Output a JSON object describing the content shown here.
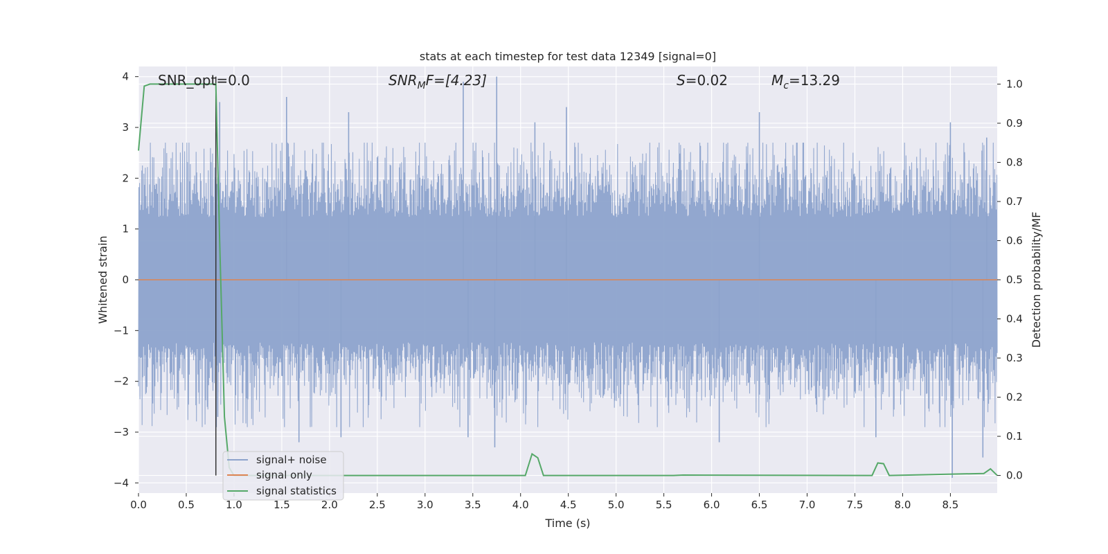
{
  "chart_data": {
    "type": "line",
    "title": "stats at each timestep for test data 12349 [signal=0]",
    "xlabel": "Time (s)",
    "ylabel": "Whitened strain",
    "y2label": "Detection probability/MF",
    "xlim": [
      0.0,
      8.99
    ],
    "ylim": [
      -4.2,
      4.2
    ],
    "y2lim": [
      -0.045,
      1.045
    ],
    "xticks": [
      0.0,
      0.5,
      1.0,
      1.5,
      2.0,
      2.5,
      3.0,
      3.5,
      4.0,
      4.5,
      5.0,
      5.5,
      6.0,
      6.5,
      7.0,
      7.5,
      8.0,
      8.5
    ],
    "xtick_labels": [
      "0.0",
      "0.5",
      "1.0",
      "1.5",
      "2.0",
      "2.5",
      "3.0",
      "3.5",
      "4.0",
      "4.5",
      "5.0",
      "5.5",
      "6.0",
      "6.5",
      "7.0",
      "7.5",
      "8.0",
      "8.5"
    ],
    "yticks": [
      4,
      3,
      2,
      1,
      0,
      -1,
      -2,
      -3,
      -4
    ],
    "ytick_labels": [
      "4",
      "3",
      "2",
      "1",
      "0",
      "−1",
      "−2",
      "−3",
      "−4"
    ],
    "y2ticks": [
      1.0,
      0.9,
      0.8,
      0.7,
      0.6,
      0.5,
      0.4,
      0.3,
      0.2,
      0.1,
      0.0
    ],
    "y2tick_labels": [
      "1.0",
      "0.9",
      "0.8",
      "0.7",
      "0.6",
      "0.5",
      "0.4",
      "0.3",
      "0.2",
      "0.1",
      "0.0"
    ],
    "grid": true,
    "legend_placement": "lower-left",
    "annotations": {
      "snr_opt": "SNR_opt=0.0",
      "snr_mf_main": "SNR",
      "snr_mf_sub": "M",
      "snr_mf_rest": "F=[4.23]",
      "s_main": "S",
      "s_rest": "=0.02",
      "mc_main": "M",
      "mc_sub": "c",
      "mc_rest": "=13.29"
    },
    "marker_line_x": 0.81,
    "series": [
      {
        "name": "signal+ noise",
        "color": "#8da3cc",
        "axis": "left",
        "style": "dense-noise",
        "rms_level": 1.3,
        "spikes": [
          {
            "x": 0.81,
            "y": 2.9
          },
          {
            "x": 0.85,
            "y": 3.5
          },
          {
            "x": 0.83,
            "y": -2.7
          },
          {
            "x": 1.55,
            "y": 3.6
          },
          {
            "x": 2.2,
            "y": 3.3
          },
          {
            "x": 3.4,
            "y": 3.9
          },
          {
            "x": 3.75,
            "y": 4.0
          },
          {
            "x": 4.15,
            "y": 3.1
          },
          {
            "x": 4.48,
            "y": 3.4
          },
          {
            "x": 6.5,
            "y": 3.3
          },
          {
            "x": 8.5,
            "y": 3.1
          },
          {
            "x": 8.88,
            "y": 2.8
          },
          {
            "x": 1.68,
            "y": -3.2
          },
          {
            "x": 2.12,
            "y": -3.1
          },
          {
            "x": 3.45,
            "y": -3.1
          },
          {
            "x": 3.73,
            "y": -3.3
          },
          {
            "x": 6.08,
            "y": -3.2
          },
          {
            "x": 7.72,
            "y": -3.1
          },
          {
            "x": 8.52,
            "y": -3.9
          },
          {
            "x": 8.84,
            "y": -3.5
          }
        ]
      },
      {
        "name": "signal only",
        "color": "#dd8452",
        "axis": "left",
        "x": [
          0.0,
          8.99
        ],
        "y": [
          0.0,
          0.0
        ]
      },
      {
        "name": "signal statistics",
        "color": "#55a868",
        "axis": "right",
        "x": [
          0.0,
          0.06,
          0.12,
          0.2,
          0.5,
          0.78,
          0.81,
          0.85,
          0.9,
          0.95,
          1.0,
          4.05,
          4.12,
          4.18,
          4.24,
          5.6,
          5.7,
          7.68,
          7.74,
          7.8,
          7.86,
          8.85,
          8.92,
          8.99
        ],
        "y": [
          0.83,
          0.995,
          1.0,
          1.0,
          1.0,
          1.0,
          1.0,
          0.6,
          0.15,
          0.02,
          0.0,
          0.0,
          0.055,
          0.045,
          0.0,
          0.0,
          0.001,
          0.0,
          0.032,
          0.03,
          0.0,
          0.005,
          0.017,
          0.0
        ]
      }
    ]
  }
}
